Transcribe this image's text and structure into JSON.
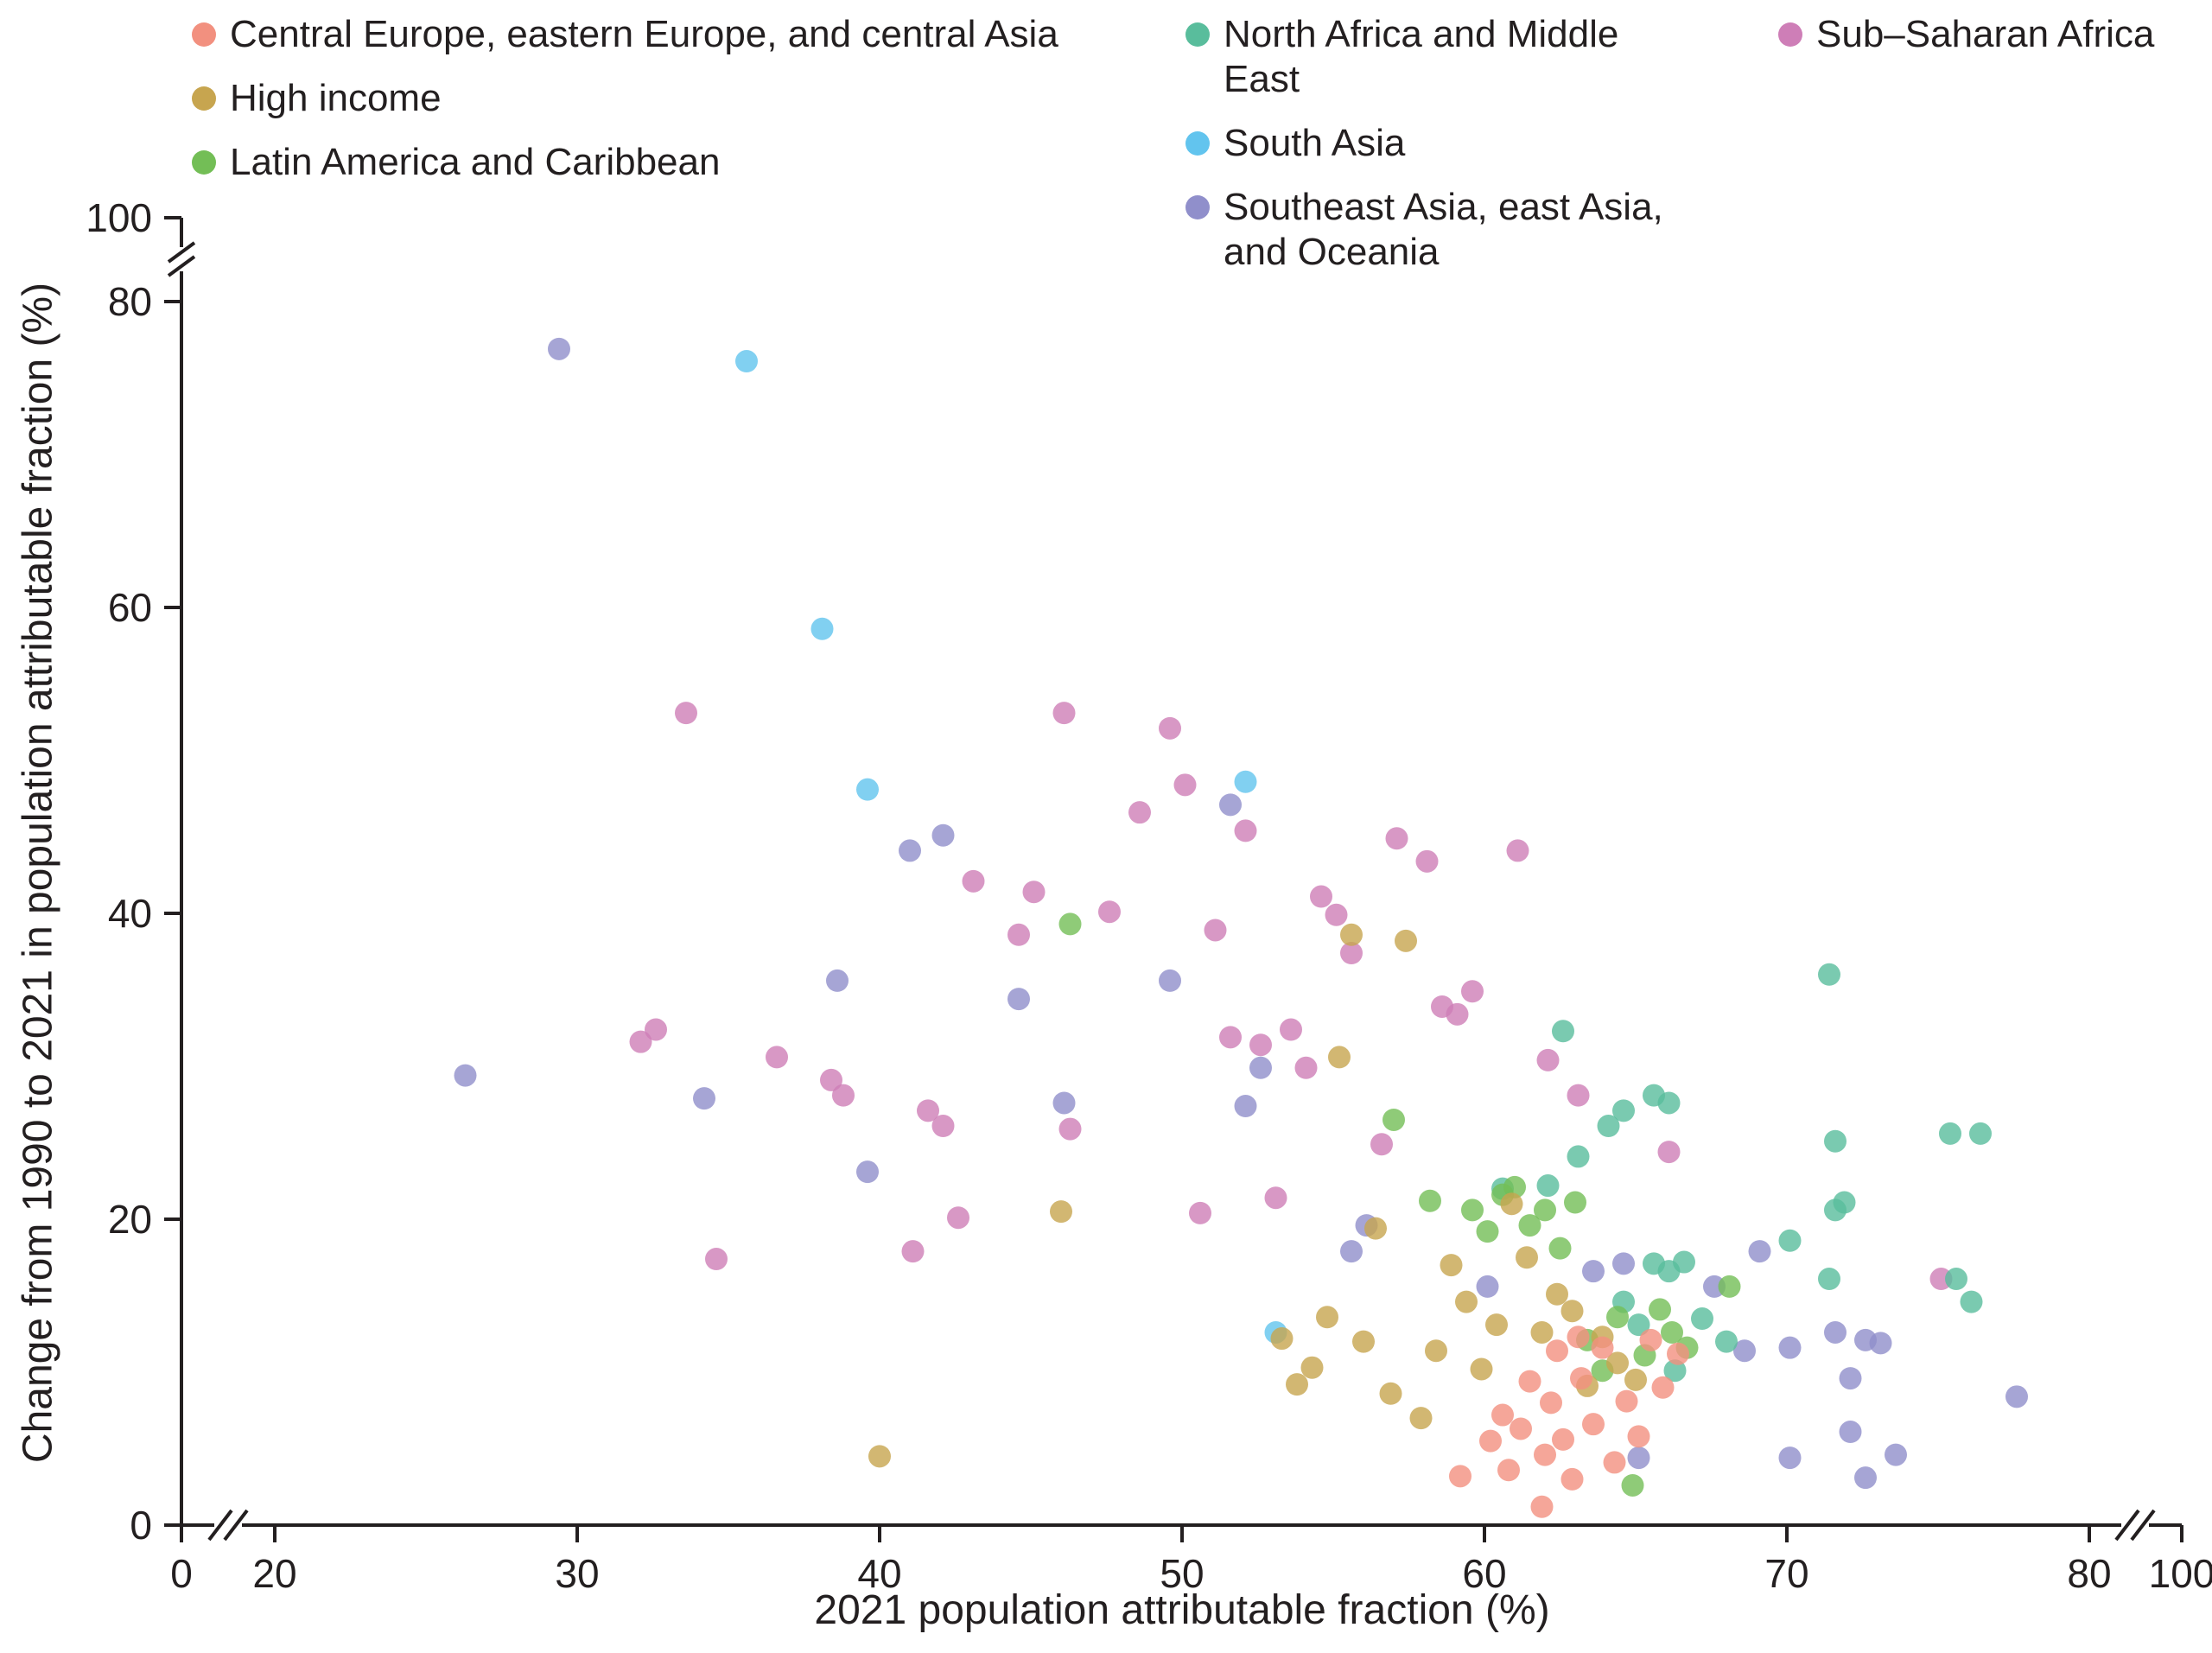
{
  "chart_data": {
    "type": "scatter",
    "title": "",
    "xlabel": "2021 population attributable fraction (%)",
    "ylabel": "Change from 1990 to 2021 in population attributable fraction (%)",
    "xlim": [
      0,
      100
    ],
    "ylim": [
      0,
      100
    ],
    "x_ticks": [
      0,
      20,
      30,
      40,
      50,
      60,
      70,
      80,
      100
    ],
    "y_ticks": [
      0,
      20,
      40,
      60,
      80,
      100
    ],
    "axis_breaks": {
      "x": [
        [
          0,
          20
        ],
        [
          80,
          100
        ]
      ],
      "y": [
        [
          80,
          100
        ]
      ]
    },
    "grid": false,
    "legend_position": "top",
    "series": [
      {
        "name": "Central Europe, eastern Europe, and central Asia",
        "color": "#F2907F",
        "points": [
          [
            59.2,
            3.2
          ],
          [
            60.2,
            5.5
          ],
          [
            60.8,
            3.6
          ],
          [
            61.2,
            6.3
          ],
          [
            61.9,
            1.2
          ],
          [
            62.0,
            4.6
          ],
          [
            62.2,
            8.0
          ],
          [
            62.6,
            5.6
          ],
          [
            62.9,
            3.0
          ],
          [
            63.2,
            9.6
          ],
          [
            63.6,
            6.6
          ],
          [
            63.9,
            11.6
          ],
          [
            64.3,
            4.1
          ],
          [
            64.7,
            8.1
          ],
          [
            65.1,
            5.8
          ],
          [
            65.5,
            12.1
          ],
          [
            65.9,
            9.0
          ],
          [
            66.4,
            11.2
          ],
          [
            61.5,
            9.4
          ],
          [
            62.4,
            11.4
          ],
          [
            60.6,
            7.2
          ],
          [
            63.1,
            12.3
          ]
        ]
      },
      {
        "name": "High income",
        "color": "#C7A54F",
        "points": [
          [
            40.0,
            4.5
          ],
          [
            46.0,
            20.5
          ],
          [
            53.3,
            12.2
          ],
          [
            53.8,
            9.2
          ],
          [
            54.3,
            10.3
          ],
          [
            54.8,
            13.6
          ],
          [
            55.2,
            30.6
          ],
          [
            55.6,
            38.6
          ],
          [
            56.0,
            12.0
          ],
          [
            56.4,
            19.4
          ],
          [
            56.9,
            8.6
          ],
          [
            57.4,
            38.2
          ],
          [
            57.9,
            7.0
          ],
          [
            58.4,
            11.4
          ],
          [
            58.9,
            17.0
          ],
          [
            59.4,
            14.6
          ],
          [
            59.9,
            10.2
          ],
          [
            60.4,
            13.1
          ],
          [
            60.9,
            21.0
          ],
          [
            61.4,
            17.5
          ],
          [
            61.9,
            12.6
          ],
          [
            62.4,
            15.1
          ],
          [
            62.9,
            14.0
          ],
          [
            63.4,
            9.1
          ],
          [
            63.9,
            12.3
          ],
          [
            64.4,
            10.6
          ],
          [
            65.0,
            9.5
          ]
        ]
      },
      {
        "name": "Latin America and Caribbean",
        "color": "#73BE56",
        "points": [
          [
            46.3,
            39.3
          ],
          [
            57.0,
            26.5
          ],
          [
            58.2,
            21.2
          ],
          [
            59.6,
            20.6
          ],
          [
            60.1,
            19.2
          ],
          [
            60.6,
            21.6
          ],
          [
            61.0,
            22.1
          ],
          [
            61.5,
            19.6
          ],
          [
            62.0,
            20.6
          ],
          [
            62.5,
            18.1
          ],
          [
            63.0,
            21.1
          ],
          [
            63.4,
            12.1
          ],
          [
            63.9,
            10.1
          ],
          [
            64.4,
            13.6
          ],
          [
            64.9,
            2.6
          ],
          [
            65.3,
            11.1
          ],
          [
            65.8,
            14.1
          ],
          [
            66.2,
            12.6
          ],
          [
            66.7,
            11.6
          ],
          [
            68.1,
            15.6
          ]
        ]
      },
      {
        "name": "North Africa and Middle East",
        "color": "#59BD9C",
        "points": [
          [
            60.6,
            22.0
          ],
          [
            62.1,
            22.2
          ],
          [
            62.6,
            32.3
          ],
          [
            63.1,
            24.1
          ],
          [
            64.1,
            26.1
          ],
          [
            64.6,
            27.1
          ],
          [
            65.6,
            28.1
          ],
          [
            66.1,
            27.6
          ],
          [
            64.6,
            14.6
          ],
          [
            65.1,
            13.1
          ],
          [
            65.6,
            17.1
          ],
          [
            66.1,
            16.6
          ],
          [
            66.6,
            17.2
          ],
          [
            67.2,
            13.5
          ],
          [
            68.0,
            12.0
          ],
          [
            70.1,
            18.6
          ],
          [
            71.4,
            36.0
          ],
          [
            71.6,
            25.1
          ],
          [
            71.9,
            21.1
          ],
          [
            71.6,
            20.6
          ],
          [
            71.4,
            16.1
          ],
          [
            75.4,
            25.6
          ],
          [
            76.4,
            25.6
          ],
          [
            75.6,
            16.1
          ],
          [
            76.1,
            14.6
          ],
          [
            66.3,
            10.1
          ]
        ]
      },
      {
        "name": "South Asia",
        "color": "#62C4EE",
        "points": [
          [
            35.6,
            76.1
          ],
          [
            38.1,
            58.6
          ],
          [
            39.6,
            48.1
          ],
          [
            52.1,
            48.6
          ],
          [
            53.1,
            12.6
          ]
        ]
      },
      {
        "name": "Southeast Asia, east Asia, and Oceania",
        "color": "#908FCB",
        "points": [
          [
            29.4,
            76.9
          ],
          [
            26.3,
            29.4
          ],
          [
            34.2,
            27.9
          ],
          [
            38.6,
            35.6
          ],
          [
            39.6,
            23.1
          ],
          [
            41.0,
            44.1
          ],
          [
            42.1,
            45.1
          ],
          [
            44.6,
            34.4
          ],
          [
            46.1,
            27.6
          ],
          [
            49.6,
            35.6
          ],
          [
            51.6,
            47.1
          ],
          [
            52.1,
            27.4
          ],
          [
            52.6,
            29.9
          ],
          [
            55.6,
            17.9
          ],
          [
            56.1,
            19.6
          ],
          [
            60.1,
            15.6
          ],
          [
            63.6,
            16.6
          ],
          [
            64.6,
            17.1
          ],
          [
            67.6,
            15.6
          ],
          [
            68.6,
            11.4
          ],
          [
            69.1,
            17.9
          ],
          [
            70.1,
            11.6
          ],
          [
            71.6,
            12.6
          ],
          [
            72.1,
            9.6
          ],
          [
            72.6,
            12.1
          ],
          [
            73.1,
            11.9
          ],
          [
            72.1,
            6.1
          ],
          [
            73.6,
            4.6
          ],
          [
            70.1,
            4.4
          ],
          [
            77.6,
            8.4
          ],
          [
            72.6,
            3.1
          ],
          [
            65.1,
            4.4
          ]
        ]
      },
      {
        "name": "Sub–Saharan Africa",
        "color": "#CE7EB7",
        "points": [
          [
            33.6,
            53.1
          ],
          [
            32.6,
            32.4
          ],
          [
            32.1,
            31.6
          ],
          [
            34.6,
            17.4
          ],
          [
            36.6,
            30.6
          ],
          [
            38.4,
            29.1
          ],
          [
            38.8,
            28.1
          ],
          [
            41.1,
            17.9
          ],
          [
            41.6,
            27.1
          ],
          [
            42.1,
            26.1
          ],
          [
            42.6,
            20.1
          ],
          [
            43.1,
            42.1
          ],
          [
            44.6,
            38.6
          ],
          [
            45.1,
            41.4
          ],
          [
            46.1,
            53.1
          ],
          [
            46.3,
            25.9
          ],
          [
            47.6,
            40.1
          ],
          [
            48.6,
            46.6
          ],
          [
            49.6,
            52.1
          ],
          [
            50.1,
            48.4
          ],
          [
            50.6,
            20.4
          ],
          [
            51.1,
            38.9
          ],
          [
            51.6,
            31.9
          ],
          [
            52.1,
            45.4
          ],
          [
            52.6,
            31.4
          ],
          [
            53.1,
            21.4
          ],
          [
            53.6,
            32.4
          ],
          [
            54.1,
            29.9
          ],
          [
            54.6,
            41.1
          ],
          [
            55.1,
            39.9
          ],
          [
            55.6,
            37.4
          ],
          [
            56.6,
            24.9
          ],
          [
            57.1,
            44.9
          ],
          [
            58.1,
            43.4
          ],
          [
            58.6,
            33.9
          ],
          [
            59.1,
            33.4
          ],
          [
            59.6,
            34.9
          ],
          [
            61.1,
            44.1
          ],
          [
            62.1,
            30.4
          ],
          [
            63.1,
            28.1
          ],
          [
            66.1,
            24.4
          ],
          [
            75.1,
            16.1
          ]
        ]
      }
    ]
  }
}
